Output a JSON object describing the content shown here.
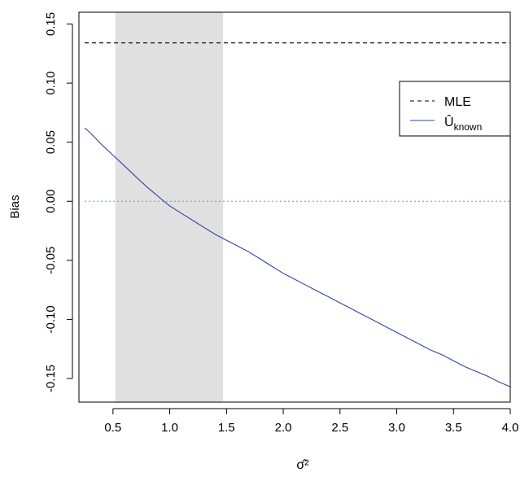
{
  "chart_data": {
    "type": "line",
    "xlabel": "σ̂²",
    "ylabel": "Bias",
    "xlim": [
      0.2,
      4.0
    ],
    "ylim": [
      -0.17,
      0.16
    ],
    "x_ticks": [
      0.5,
      1.0,
      1.5,
      2.0,
      2.5,
      3.0,
      3.5,
      4.0
    ],
    "x_tick_labels": [
      "0.5",
      "1.0",
      "1.5",
      "2.0",
      "2.5",
      "3.0",
      "3.5",
      "4.0"
    ],
    "y_ticks": [
      -0.15,
      -0.1,
      -0.05,
      0.0,
      0.05,
      0.1,
      0.15
    ],
    "y_tick_labels": [
      "-0.15",
      "-0.10",
      "-0.05",
      "0.00",
      "0.05",
      "0.10",
      "0.15"
    ],
    "shaded_region": {
      "x": [
        0.52,
        1.47
      ],
      "color": "#e0e0e0"
    },
    "reference_line": {
      "y": 0.0,
      "color": "#33cc33",
      "style": "dotted"
    },
    "grid": false,
    "legend_position": "top-right",
    "series": [
      {
        "name": "MLE",
        "color": "#000000",
        "style": "dashed",
        "x": [
          0.25,
          4.0
        ],
        "y": [
          0.134,
          0.134
        ]
      },
      {
        "name": "Û_known",
        "color": "#3344aa",
        "style": "solid",
        "x": [
          0.25,
          0.3,
          0.4,
          0.5,
          0.6,
          0.7,
          0.8,
          0.9,
          1.0,
          1.1,
          1.2,
          1.3,
          1.4,
          1.5,
          1.6,
          1.7,
          1.8,
          1.9,
          2.0,
          2.1,
          2.2,
          2.3,
          2.4,
          2.5,
          2.6,
          2.7,
          2.8,
          2.9,
          3.0,
          3.1,
          3.2,
          3.3,
          3.4,
          3.5,
          3.6,
          3.7,
          3.8,
          3.9,
          4.0
        ],
        "y": [
          0.062,
          0.058,
          0.048,
          0.039,
          0.03,
          0.021,
          0.012,
          0.004,
          -0.004,
          -0.01,
          -0.016,
          -0.022,
          -0.028,
          -0.033,
          -0.038,
          -0.043,
          -0.049,
          -0.055,
          -0.061,
          -0.066,
          -0.071,
          -0.076,
          -0.081,
          -0.086,
          -0.091,
          -0.096,
          -0.101,
          -0.106,
          -0.111,
          -0.116,
          -0.121,
          -0.126,
          -0.13,
          -0.135,
          -0.14,
          -0.144,
          -0.148,
          -0.153,
          -0.157
        ]
      }
    ],
    "legend": {
      "entries": [
        {
          "label": "MLE",
          "style": "dashed",
          "color": "#000000"
        },
        {
          "label_main": "Û",
          "label_sub": "known",
          "style": "solid",
          "color": "#3344aa"
        }
      ]
    }
  }
}
